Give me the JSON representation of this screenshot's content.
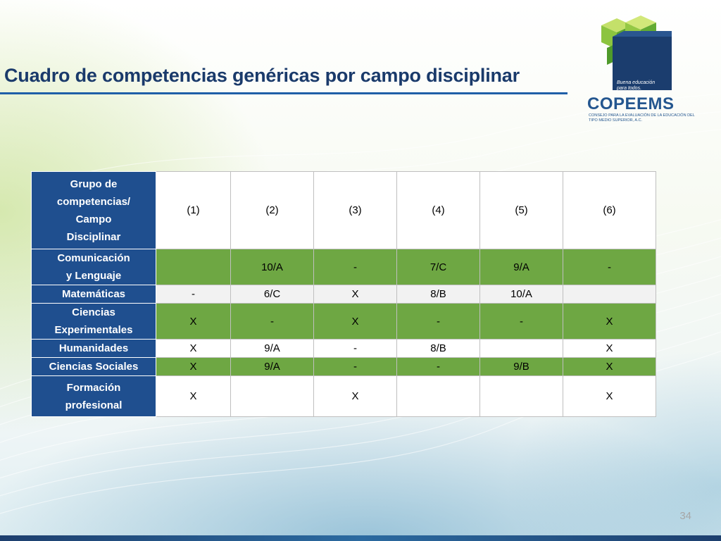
{
  "slide": {
    "title": "Cuadro de competencias genéricas por campo disciplinar",
    "page_number": "34"
  },
  "logo": {
    "tagline": "Buena educación para todos.",
    "name": "COPEEMS",
    "subtitle": "Consejo para la Evaluación de la Educación del Tipo Medio Superior, A.C."
  },
  "table": {
    "corner_header": [
      "Grupo de",
      "competencias/",
      "Campo",
      "Disciplinar"
    ],
    "columns": [
      "(1)",
      "(2)",
      "(3)",
      "(4)",
      "(5)",
      "(6)"
    ],
    "rows": [
      {
        "label": [
          "Comunicación",
          "y Lenguaje"
        ],
        "style": "green",
        "cells": [
          "",
          "10/A",
          "-",
          "7/C",
          "9/A",
          "-"
        ]
      },
      {
        "label": [
          "Matemáticas"
        ],
        "style": "light",
        "cells": [
          "-",
          "6/C",
          "X",
          "8/B",
          "10/A",
          ""
        ]
      },
      {
        "label": [
          "Ciencias",
          "Experimentales"
        ],
        "style": "green",
        "cells": [
          "X",
          "-",
          "X",
          "-",
          "-",
          "X"
        ]
      },
      {
        "label": [
          "Humanidades"
        ],
        "style": "white",
        "cells": [
          "X",
          "9/A",
          "-",
          "8/B",
          "",
          "X"
        ]
      },
      {
        "label": [
          "Ciencias Sociales"
        ],
        "style": "green",
        "cells": [
          "X",
          "9/A",
          "-",
          "-",
          "9/B",
          "X"
        ]
      },
      {
        "label": [
          "Formación",
          "profesional"
        ],
        "style": "white",
        "cells": [
          "X",
          "",
          "X",
          "",
          "",
          "X"
        ]
      }
    ]
  },
  "colors": {
    "header_blue": "#1f4f8f",
    "row_green": "#6ea743",
    "title_blue": "#1a3a6b"
  }
}
